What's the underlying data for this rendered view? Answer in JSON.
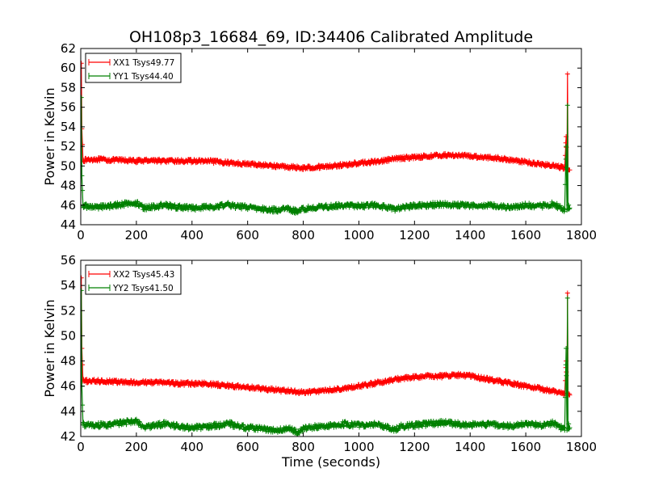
{
  "figure": {
    "title": "OH108p3_16684_69, ID:34406 Calibrated Amplitude",
    "xlabel": "Time (seconds)"
  },
  "chart_data": [
    {
      "type": "line",
      "ylabel": "Power in Kelvin",
      "xlim": [
        0,
        1800
      ],
      "ylim": [
        44,
        62
      ],
      "xticks": [
        0,
        200,
        400,
        600,
        800,
        1000,
        1200,
        1400,
        1600,
        1800
      ],
      "yticks": [
        44,
        46,
        48,
        50,
        52,
        54,
        56,
        58,
        60,
        62
      ],
      "legend_position": "top-left",
      "series": [
        {
          "name": "XX1 Tsys49.77",
          "color": "#ff0000",
          "noise": 0.18,
          "x": [
            0,
            2,
            4,
            8,
            15,
            50,
            100,
            150,
            200,
            250,
            300,
            350,
            400,
            450,
            500,
            550,
            600,
            650,
            700,
            750,
            800,
            850,
            900,
            950,
            1000,
            1050,
            1100,
            1150,
            1200,
            1250,
            1300,
            1350,
            1400,
            1450,
            1500,
            1550,
            1600,
            1650,
            1700,
            1740,
            1745,
            1748,
            1750,
            1752,
            1754,
            1756,
            1758
          ],
          "y": [
            50.6,
            60.5,
            53.8,
            50.6,
            50.6,
            50.7,
            50.6,
            50.6,
            50.5,
            50.6,
            50.5,
            50.5,
            50.5,
            50.5,
            50.4,
            50.3,
            50.2,
            50.1,
            50.0,
            49.9,
            49.8,
            49.9,
            50.0,
            50.1,
            50.3,
            50.4,
            50.6,
            50.8,
            50.9,
            51.0,
            51.1,
            51.1,
            51.0,
            50.9,
            50.8,
            50.6,
            50.4,
            50.2,
            50.0,
            49.8,
            53.0,
            49.7,
            59.4,
            49.6,
            49.6,
            49.6,
            49.6
          ]
        },
        {
          "name": "YY1 Tsys44.40",
          "color": "#008000",
          "noise": 0.25,
          "x": [
            0,
            2,
            4,
            8,
            15,
            50,
            100,
            150,
            200,
            230,
            250,
            300,
            350,
            400,
            450,
            500,
            530,
            550,
            600,
            650,
            700,
            750,
            780,
            800,
            850,
            900,
            950,
            1000,
            1050,
            1100,
            1130,
            1150,
            1200,
            1250,
            1300,
            1350,
            1400,
            1450,
            1500,
            1550,
            1600,
            1650,
            1700,
            1740,
            1745,
            1748,
            1750,
            1752,
            1754,
            1756,
            1758
          ],
          "y": [
            45.9,
            57.0,
            49.0,
            46.0,
            45.9,
            45.8,
            45.9,
            46.1,
            46.2,
            45.7,
            45.8,
            46.0,
            45.8,
            45.7,
            45.8,
            45.9,
            46.1,
            45.9,
            45.8,
            45.6,
            45.5,
            45.6,
            45.3,
            45.6,
            45.8,
            45.9,
            46.0,
            45.9,
            46.0,
            45.8,
            45.5,
            45.8,
            45.9,
            46.0,
            46.1,
            46.0,
            45.9,
            46.0,
            45.9,
            45.8,
            46.0,
            45.9,
            46.1,
            45.5,
            52.0,
            45.5,
            56.2,
            45.6,
            46.0,
            45.6,
            45.7
          ]
        }
      ]
    },
    {
      "type": "line",
      "ylabel": "Power in Kelvin",
      "xlim": [
        0,
        1800
      ],
      "ylim": [
        42,
        56
      ],
      "xticks": [
        0,
        200,
        400,
        600,
        800,
        1000,
        1200,
        1400,
        1600,
        1800
      ],
      "yticks": [
        42,
        44,
        46,
        48,
        50,
        52,
        54,
        56
      ],
      "legend_position": "top-left",
      "series": [
        {
          "name": "XX2 Tsys45.43",
          "color": "#ff0000",
          "noise": 0.15,
          "x": [
            0,
            2,
            4,
            8,
            15,
            50,
            100,
            150,
            200,
            250,
            300,
            350,
            400,
            450,
            500,
            550,
            600,
            650,
            700,
            750,
            800,
            850,
            900,
            950,
            1000,
            1050,
            1100,
            1150,
            1200,
            1250,
            1300,
            1350,
            1400,
            1450,
            1500,
            1550,
            1600,
            1650,
            1700,
            1740,
            1745,
            1748,
            1750,
            1752,
            1754,
            1756,
            1758
          ],
          "y": [
            46.4,
            54.6,
            49.0,
            46.4,
            46.4,
            46.4,
            46.4,
            46.3,
            46.3,
            46.3,
            46.3,
            46.2,
            46.2,
            46.2,
            46.1,
            46.0,
            45.9,
            45.8,
            45.7,
            45.6,
            45.5,
            45.6,
            45.7,
            45.8,
            46.0,
            46.2,
            46.4,
            46.6,
            46.7,
            46.8,
            46.8,
            46.9,
            46.8,
            46.6,
            46.4,
            46.2,
            46.0,
            45.8,
            45.6,
            45.4,
            48.0,
            45.4,
            53.4,
            45.4,
            45.3,
            45.4,
            45.3
          ]
        },
        {
          "name": "YY2 Tsys41.50",
          "color": "#008000",
          "noise": 0.2,
          "x": [
            0,
            2,
            4,
            8,
            15,
            50,
            100,
            150,
            200,
            230,
            250,
            300,
            350,
            400,
            450,
            500,
            530,
            550,
            600,
            650,
            700,
            750,
            780,
            800,
            850,
            900,
            950,
            1000,
            1050,
            1100,
            1130,
            1150,
            1200,
            1250,
            1300,
            1350,
            1400,
            1450,
            1500,
            1550,
            1600,
            1650,
            1700,
            1740,
            1745,
            1748,
            1750,
            1752,
            1754,
            1756,
            1758
          ],
          "y": [
            42.9,
            53.6,
            46.0,
            43.0,
            42.9,
            42.9,
            42.9,
            43.1,
            43.2,
            42.7,
            42.8,
            43.0,
            42.8,
            42.7,
            42.8,
            42.9,
            43.1,
            42.9,
            42.7,
            42.6,
            42.5,
            42.6,
            42.3,
            42.6,
            42.8,
            42.9,
            43.0,
            42.9,
            43.0,
            42.8,
            42.5,
            42.8,
            42.9,
            43.0,
            43.1,
            43.0,
            42.9,
            43.0,
            42.9,
            42.8,
            43.0,
            42.9,
            43.1,
            42.5,
            49.0,
            42.5,
            53.0,
            42.6,
            43.0,
            42.6,
            42.7
          ]
        }
      ]
    }
  ]
}
